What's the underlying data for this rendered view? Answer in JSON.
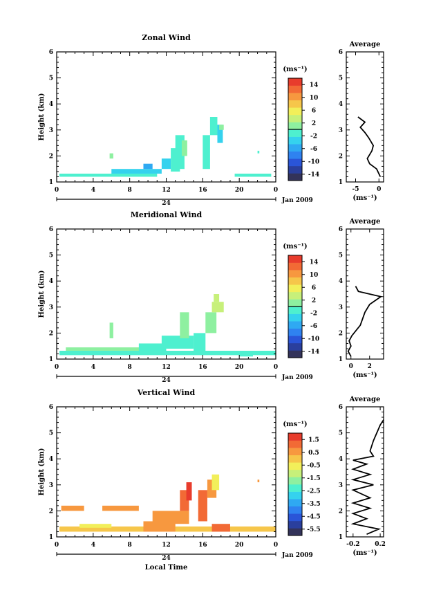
{
  "figure": {
    "date_label": "Jan 2009",
    "xlabel": "Local Time",
    "ylabel": "Height (km)",
    "avg_title": "Average",
    "unit": "(ms⁻¹)",
    "date_tick": "24",
    "x_ticks": [
      "0",
      "4",
      "8",
      "12",
      "16",
      "20",
      "0"
    ]
  },
  "chart_data": [
    {
      "type": "heatmap",
      "title": "Zonal Wind",
      "xlim": [
        0,
        24
      ],
      "ylim": [
        1,
        6
      ],
      "ylabel": "Height (km)",
      "y_ticks": [
        "1",
        "2",
        "3",
        "4",
        "5",
        "6"
      ],
      "colorbar": {
        "ticks": [
          "14",
          "10",
          "6",
          "2",
          "-2",
          "-6",
          "-10",
          "-14"
        ],
        "min": -16,
        "max": 16,
        "zero_line": 0
      },
      "regions": [
        {
          "x": 0.3,
          "x2": 11.0,
          "y": 1.2,
          "y2": 1.32,
          "v": -2
        },
        {
          "x": 6.0,
          "x2": 11.5,
          "y": 1.32,
          "y2": 1.5,
          "v": -4
        },
        {
          "x": 9.5,
          "x2": 10.5,
          "y": 1.5,
          "y2": 1.7,
          "v": -6
        },
        {
          "x": 11.5,
          "x2": 12.5,
          "y": 1.5,
          "y2": 1.9,
          "v": -3
        },
        {
          "x": 12.5,
          "x2": 13.5,
          "y": 1.4,
          "y2": 2.3,
          "v": -2
        },
        {
          "x": 13.0,
          "x2": 14.0,
          "y": 1.5,
          "y2": 2.8,
          "v": -1
        },
        {
          "x": 13.7,
          "x2": 14.3,
          "y": 2.0,
          "y2": 2.6,
          "v": 1
        },
        {
          "x": 16.0,
          "x2": 16.8,
          "y": 1.5,
          "y2": 2.8,
          "v": -2
        },
        {
          "x": 16.8,
          "x2": 17.6,
          "y": 2.8,
          "y2": 3.5,
          "v": -2
        },
        {
          "x": 17.6,
          "x2": 18.2,
          "y": 2.5,
          "y2": 3.2,
          "v": -3
        },
        {
          "x": 17.8,
          "x2": 18.3,
          "y": 3.0,
          "y2": 3.2,
          "v": 2
        },
        {
          "x": 19.5,
          "x2": 23.5,
          "y": 1.2,
          "y2": 1.32,
          "v": -1
        },
        {
          "x": 5.8,
          "x2": 6.2,
          "y": 1.9,
          "y2": 2.1,
          "v": 1
        },
        {
          "x": 22.0,
          "x2": 22.2,
          "y": 2.1,
          "y2": 2.2,
          "v": -2
        }
      ],
      "avg": {
        "xlim": [
          -7,
          1
        ],
        "x_ticks": [
          "-5",
          "0"
        ],
        "x_tick_values": [
          -5,
          0
        ],
        "profile": [
          [
            0.3,
            1.2
          ],
          [
            -0.5,
            1.5
          ],
          [
            -2.0,
            1.7
          ],
          [
            -2.5,
            1.9
          ],
          [
            -1.5,
            2.2
          ],
          [
            -1.2,
            2.4
          ],
          [
            -2.2,
            2.7
          ],
          [
            -3.0,
            2.9
          ],
          [
            -4.0,
            3.1
          ],
          [
            -3.0,
            3.3
          ],
          [
            -4.5,
            3.5
          ]
        ]
      }
    },
    {
      "type": "heatmap",
      "title": "Meridional Wind",
      "xlim": [
        0,
        24
      ],
      "ylim": [
        1,
        6
      ],
      "ylabel": "Height (km)",
      "y_ticks": [
        "1",
        "2",
        "3",
        "4",
        "5",
        "6"
      ],
      "colorbar": {
        "ticks": [
          "14",
          "10",
          "6",
          "2",
          "-2",
          "-6",
          "-10",
          "-14"
        ],
        "min": -16,
        "max": 16,
        "zero_line": 0
      },
      "regions": [
        {
          "x": 0.3,
          "x2": 24.0,
          "y": 1.15,
          "y2": 1.32,
          "v": -1
        },
        {
          "x": 1.0,
          "x2": 10.0,
          "y": 1.32,
          "y2": 1.45,
          "v": 0
        },
        {
          "x": 5.8,
          "x2": 6.2,
          "y": 1.8,
          "y2": 2.4,
          "v": 1
        },
        {
          "x": 9.0,
          "x2": 12.0,
          "y": 1.3,
          "y2": 1.6,
          "v": -2
        },
        {
          "x": 11.5,
          "x2": 15.0,
          "y": 1.4,
          "y2": 1.9,
          "v": -1
        },
        {
          "x": 13.5,
          "x2": 14.5,
          "y": 1.8,
          "y2": 2.8,
          "v": 1
        },
        {
          "x": 15.0,
          "x2": 16.3,
          "y": 1.3,
          "y2": 2.0,
          "v": -2
        },
        {
          "x": 16.3,
          "x2": 17.5,
          "y": 2.0,
          "y2": 2.8,
          "v": 2
        },
        {
          "x": 17.0,
          "x2": 18.3,
          "y": 2.8,
          "y2": 3.2,
          "v": 3
        },
        {
          "x": 17.2,
          "x2": 17.8,
          "y": 3.2,
          "y2": 3.5,
          "v": 4
        },
        {
          "x": 20.0,
          "x2": 21.5,
          "y": 1.1,
          "y2": 1.3,
          "v": -2
        }
      ],
      "avg": {
        "xlim": [
          -0.5,
          3.5
        ],
        "x_ticks": [
          "0",
          "2"
        ],
        "x_tick_values": [
          0,
          2
        ],
        "profile": [
          [
            0.0,
            1.1
          ],
          [
            -0.3,
            1.3
          ],
          [
            0.0,
            1.5
          ],
          [
            -0.2,
            1.7
          ],
          [
            0.1,
            1.9
          ],
          [
            1.0,
            2.3
          ],
          [
            1.5,
            2.8
          ],
          [
            2.0,
            3.1
          ],
          [
            3.2,
            3.4
          ],
          [
            2.0,
            3.5
          ],
          [
            0.8,
            3.6
          ],
          [
            0.5,
            3.8
          ]
        ]
      }
    },
    {
      "type": "heatmap",
      "title": "Vertical Wind",
      "xlim": [
        0,
        24
      ],
      "ylim": [
        1,
        6
      ],
      "ylabel": "Height (km)",
      "xlabel": "Local Time",
      "y_ticks": [
        "1",
        "2",
        "3",
        "4",
        "5",
        "6"
      ],
      "colorbar": {
        "ticks": [
          "1.5",
          "0.5",
          "-0.5",
          "-1.5",
          "-2.5",
          "-3.5",
          "-4.5",
          "-5.5"
        ],
        "min": -6,
        "max": 2,
        "zero_line": null
      },
      "regions": [
        {
          "x": 0.3,
          "x2": 24.0,
          "y": 1.2,
          "y2": 1.4,
          "v": 0.2
        },
        {
          "x": 0.5,
          "x2": 3.0,
          "y": 2.0,
          "y2": 2.2,
          "v": 0.4
        },
        {
          "x": 5.0,
          "x2": 9.0,
          "y": 2.0,
          "y2": 2.2,
          "v": 0.4
        },
        {
          "x": 2.5,
          "x2": 6.0,
          "y": 1.35,
          "y2": 1.5,
          "v": -0.8
        },
        {
          "x": 9.5,
          "x2": 13.0,
          "y": 1.2,
          "y2": 1.6,
          "v": 0.8
        },
        {
          "x": 10.5,
          "x2": 14.5,
          "y": 1.5,
          "y2": 2.0,
          "v": 0.7
        },
        {
          "x": 13.5,
          "x2": 14.5,
          "y": 2.0,
          "y2": 2.8,
          "v": 0.9
        },
        {
          "x": 14.2,
          "x2": 14.8,
          "y": 2.4,
          "y2": 3.1,
          "v": 1.5
        },
        {
          "x": 15.5,
          "x2": 16.5,
          "y": 1.6,
          "y2": 2.8,
          "v": 1.0
        },
        {
          "x": 16.5,
          "x2": 17.5,
          "y": 2.5,
          "y2": 3.2,
          "v": 0.5
        },
        {
          "x": 17.0,
          "x2": 17.8,
          "y": 2.8,
          "y2": 3.4,
          "v": -0.3
        },
        {
          "x": 17.0,
          "x2": 19.0,
          "y": 1.2,
          "y2": 1.5,
          "v": 1.0
        },
        {
          "x": 22.0,
          "x2": 22.2,
          "y": 3.1,
          "y2": 3.2,
          "v": 0.4
        }
      ],
      "avg": {
        "xlim": [
          -0.3,
          0.25
        ],
        "x_ticks": [
          "-0.2",
          "0.2"
        ],
        "x_tick_values": [
          -0.2,
          0.2
        ],
        "profile": [
          [
            0.0,
            1.1
          ],
          [
            0.18,
            1.3
          ],
          [
            -0.2,
            1.5
          ],
          [
            0.0,
            1.7
          ],
          [
            -0.2,
            1.9
          ],
          [
            0.05,
            2.1
          ],
          [
            -0.2,
            2.3
          ],
          [
            0.05,
            2.5
          ],
          [
            -0.2,
            2.8
          ],
          [
            0.1,
            3.0
          ],
          [
            -0.2,
            3.2
          ],
          [
            0.05,
            3.4
          ],
          [
            -0.2,
            3.6
          ],
          [
            0.0,
            3.8
          ],
          [
            -0.2,
            3.95
          ],
          [
            0.1,
            4.1
          ],
          [
            0.05,
            4.3
          ],
          [
            0.1,
            4.7
          ],
          [
            0.15,
            5.0
          ],
          [
            0.2,
            5.3
          ],
          [
            0.25,
            5.5
          ]
        ]
      }
    }
  ]
}
